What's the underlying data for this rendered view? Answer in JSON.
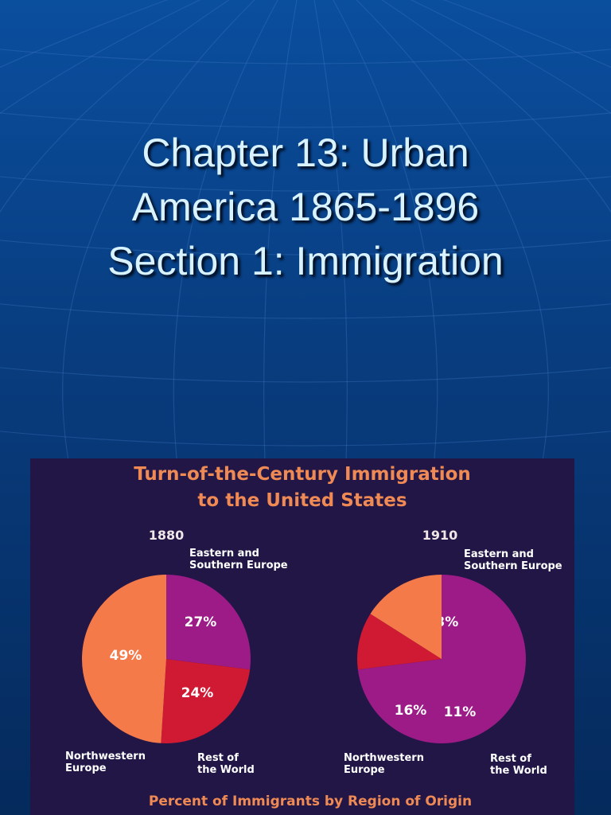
{
  "slide": {
    "title_lines": [
      "Chapter 13: Urban",
      "America 1865-1896",
      "Section 1:  Immigration"
    ]
  },
  "colors": {
    "background": "#0a3f86",
    "panel": "#211646",
    "northwestern_europe": "#f57a4a",
    "eastern_southern_europe": "#9c1b86",
    "rest_of_world": "#d01933",
    "chart_text": "#f08a55"
  },
  "chart_data": {
    "type": "pie",
    "title": "Turn-of-the-Century Immigration to the United States",
    "title_lines": [
      "Turn-of-the-Century Immigration",
      "to the United States"
    ],
    "caption": "Percent of Immigrants by Region of Origin",
    "charts": [
      {
        "year": "1880",
        "slices": [
          {
            "label": "Eastern and Southern Europe",
            "label_lines": [
              "Eastern and",
              "Southern Europe"
            ],
            "value": 27,
            "display": "27%",
            "color": "#9c1b86"
          },
          {
            "label": "Rest of the World",
            "label_lines": [
              "Rest of",
              "the World"
            ],
            "value": 24,
            "display": "24%",
            "color": "#d01933"
          },
          {
            "label": "Northwestern Europe",
            "label_lines": [
              "Northwestern",
              "Europe"
            ],
            "value": 49,
            "display": "49%",
            "color": "#f57a4a"
          }
        ]
      },
      {
        "year": "1910",
        "slices": [
          {
            "label": "Eastern and Southern Europe",
            "label_lines": [
              "Eastern and",
              "Southern Europe"
            ],
            "value": 73,
            "display": "73%",
            "color": "#9c1b86"
          },
          {
            "label": "Rest of the World",
            "label_lines": [
              "Rest of",
              "the World"
            ],
            "value": 11,
            "display": "11%",
            "color": "#d01933"
          },
          {
            "label": "Northwestern Europe",
            "label_lines": [
              "Northwestern",
              "Europe"
            ],
            "value": 16,
            "display": "16%",
            "color": "#f57a4a"
          }
        ]
      }
    ]
  }
}
